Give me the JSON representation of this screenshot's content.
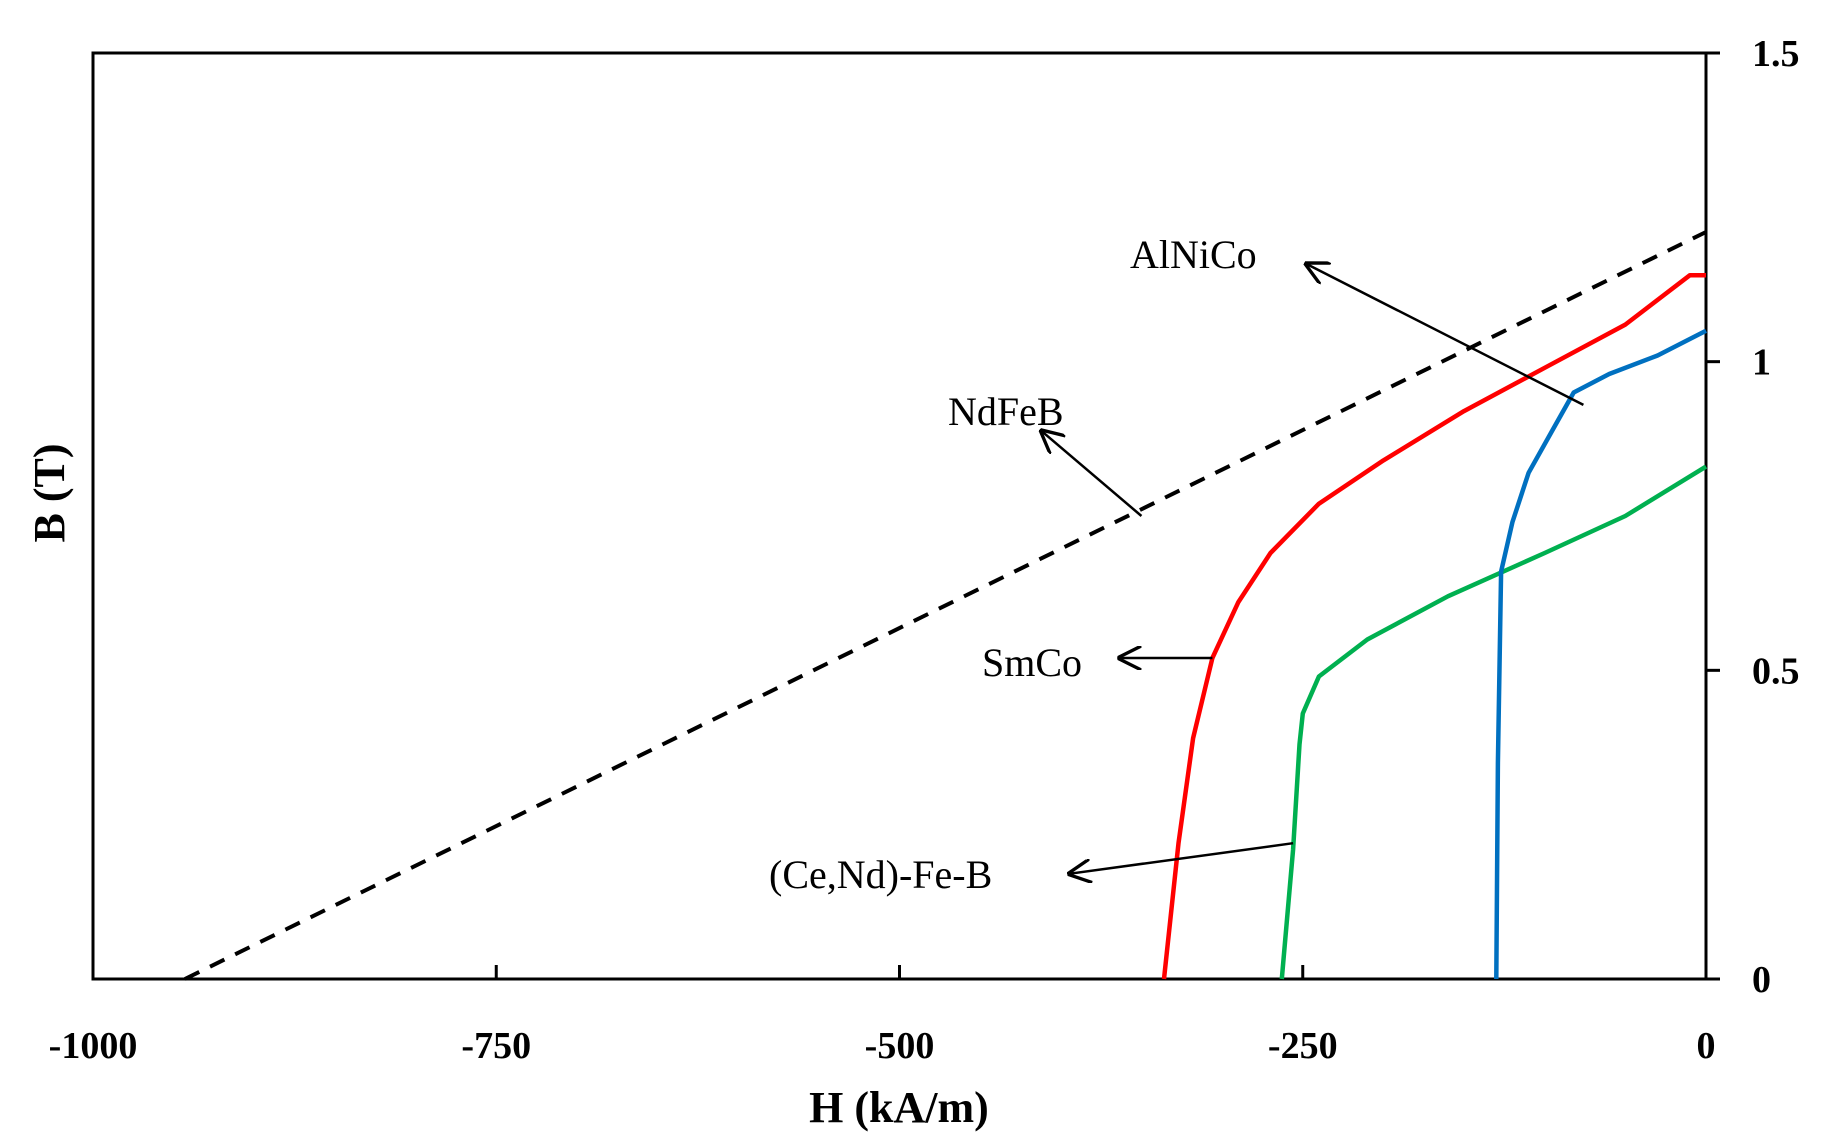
{
  "chart_data": {
    "type": "line",
    "title": "",
    "xlabel": "H (kA/m)",
    "ylabel": "B (T)",
    "xlim": [
      -1000,
      0
    ],
    "ylim": [
      0,
      1.5
    ],
    "x_ticks": [
      -1000,
      -750,
      -500,
      -250,
      0
    ],
    "x_tick_labels": [
      "-1000",
      "-750",
      "-500",
      "-250",
      "0"
    ],
    "y_ticks": [
      0,
      0.5,
      1,
      1.5
    ],
    "y_tick_labels": [
      "0",
      "0.5",
      "1",
      "1.5"
    ],
    "y_axis_position": "right",
    "grid": false,
    "legend": "none (curves labeled by arrow annotations)",
    "series": [
      {
        "name": "NdFeB",
        "color": "#000000",
        "dash": "dashed",
        "points": [
          [
            -943,
            0
          ],
          [
            0,
            1.21
          ]
        ]
      },
      {
        "name": "SmCo",
        "color": "#ff0000",
        "dash": "solid",
        "points": [
          [
            -336,
            0
          ],
          [
            -327,
            0.22
          ],
          [
            -318,
            0.39
          ],
          [
            -306,
            0.52
          ],
          [
            -290,
            0.61
          ],
          [
            -270,
            0.69
          ],
          [
            -240,
            0.77
          ],
          [
            -200,
            0.84
          ],
          [
            -150,
            0.92
          ],
          [
            -100,
            0.99
          ],
          [
            -50,
            1.06
          ],
          [
            -10,
            1.14
          ],
          [
            0,
            1.14
          ]
        ]
      },
      {
        "name": "(Ce,Nd)-Fe-B",
        "color": "#00b050",
        "dash": "solid",
        "points": [
          [
            -263,
            0
          ],
          [
            -256,
            0.21
          ],
          [
            -252,
            0.38
          ],
          [
            -250,
            0.43
          ],
          [
            -240,
            0.49
          ],
          [
            -210,
            0.55
          ],
          [
            -160,
            0.62
          ],
          [
            -100,
            0.69
          ],
          [
            -50,
            0.75
          ],
          [
            0,
            0.83
          ]
        ]
      },
      {
        "name": "AlNiCo",
        "color": "#0070c0",
        "dash": "solid",
        "points": [
          [
            -130,
            0
          ],
          [
            -129,
            0.35
          ],
          [
            -127,
            0.66
          ],
          [
            -120,
            0.74
          ],
          [
            -110,
            0.82
          ],
          [
            -95,
            0.89
          ],
          [
            -82,
            0.95
          ],
          [
            -60,
            0.98
          ],
          [
            -30,
            1.01
          ],
          [
            0,
            1.05
          ]
        ]
      }
    ],
    "annotations": [
      {
        "label": "AlNiCo",
        "arrow_from": [
          -76,
          0.93
        ],
        "arrow_to": [
          -249,
          1.16
        ]
      },
      {
        "label": "NdFeB",
        "arrow_from": [
          -350,
          0.75
        ],
        "arrow_to": [
          -413,
          0.89
        ]
      },
      {
        "label": "SmCo",
        "arrow_from": [
          -306,
          0.52
        ],
        "arrow_to": [
          -365,
          0.52
        ]
      },
      {
        "label": "(Ce,Nd)-Fe-B",
        "arrow_from": [
          -256,
          0.22
        ],
        "arrow_to": [
          -396,
          0.17
        ]
      }
    ]
  }
}
